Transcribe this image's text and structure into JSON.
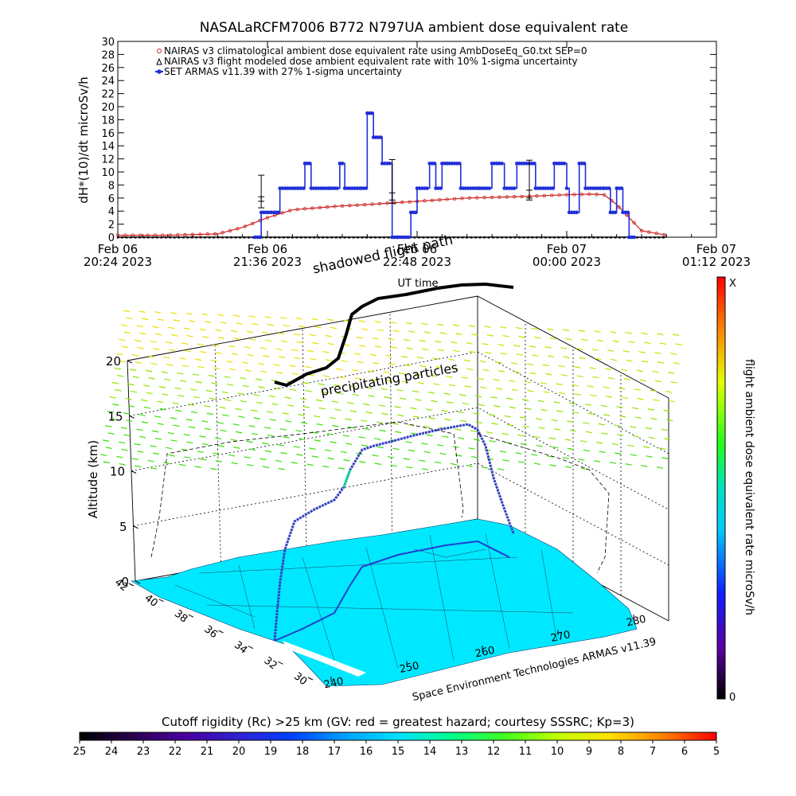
{
  "chart_data": [
    {
      "type": "line",
      "title": "NASALaRCFM7006   B772 N797UA ambient dose equivalent rate",
      "ylabel": "dH*(10)/dt microSv/h",
      "xlabel": "UT time",
      "ylim": [
        0,
        30
      ],
      "yticks": [
        "0",
        "2",
        "4",
        "6",
        "8",
        "10",
        "12",
        "14",
        "16",
        "18",
        "20",
        "22",
        "24",
        "26",
        "28",
        "30"
      ],
      "xlim_hours": [
        0,
        4.8
      ],
      "xticks": [
        {
          "line1": "Feb 06",
          "line2": "20:24 2023"
        },
        {
          "line1": "Feb 06",
          "line2": "21:36 2023"
        },
        {
          "line1": "Feb 06",
          "line2": "22:48 2023"
        },
        {
          "line1": "Feb 07",
          "line2": "00:00 2023"
        },
        {
          "line1": "Feb 07",
          "line2": "01:12 2023"
        }
      ],
      "legend_position": "top-left",
      "series": [
        {
          "name": "NAIRAS v3 climatological ambient dose equivalent rate using AmbDoseEq_G0.txt SEP=0",
          "color": "#cc2222",
          "x": [
            0.0,
            0.4,
            0.8,
            1.0,
            1.2,
            1.4,
            1.6,
            1.8,
            2.0,
            2.4,
            2.8,
            3.2,
            3.6,
            3.8,
            3.9,
            4.0,
            4.1,
            4.2,
            4.4
          ],
          "y": [
            0.3,
            0.3,
            0.5,
            1.5,
            3.0,
            4.2,
            4.5,
            4.8,
            5.0,
            5.5,
            6.0,
            6.2,
            6.5,
            6.6,
            6.5,
            5.0,
            3.0,
            1.0,
            0.3
          ]
        },
        {
          "name": "NAIRAS v3 flight modeled dose ambient equivalent rate with 10% 1-sigma uncertainty",
          "color": "#000000",
          "x": [
            0.0,
            4.4
          ],
          "y": [
            0.0,
            0.0
          ]
        },
        {
          "name": "SET ARMAS v11.39 with 27% 1-sigma uncertainty",
          "color": "#1f2fd8",
          "x": [
            1.1,
            1.15,
            1.3,
            1.45,
            1.5,
            1.55,
            1.7,
            1.78,
            1.82,
            1.95,
            2.0,
            2.05,
            2.12,
            2.2,
            2.25,
            2.35,
            2.4,
            2.5,
            2.55,
            2.6,
            2.75,
            2.9,
            3.0,
            3.1,
            3.2,
            3.35,
            3.5,
            3.6,
            3.62,
            3.7,
            3.75,
            3.9,
            3.95,
            4.0,
            4.05,
            4.1,
            4.15
          ],
          "y": [
            0.0,
            3.8,
            7.5,
            7.5,
            11.3,
            7.5,
            7.5,
            11.3,
            7.5,
            7.5,
            19.0,
            15.3,
            11.3,
            0.0,
            0.0,
            3.8,
            7.5,
            11.3,
            7.5,
            11.3,
            7.5,
            7.5,
            11.3,
            7.5,
            11.3,
            7.5,
            11.3,
            7.5,
            3.8,
            11.3,
            7.5,
            7.5,
            3.8,
            7.5,
            3.8,
            0.0,
            0.0
          ]
        }
      ],
      "error_bar_labels": []
    },
    {
      "type": "scatter",
      "subtitle": "Space Environment Technologies ARMAS v11.39",
      "zlabel": "Altitude (km)",
      "zticks": [
        "0",
        "5",
        "10",
        "15",
        "20"
      ],
      "lat_ticks": [
        "30",
        "32",
        "34",
        "36",
        "38",
        "40",
        "42"
      ],
      "lon_ticks": [
        "240",
        "250",
        "260",
        "270",
        "280"
      ],
      "annotations": [
        "shadowed flight path",
        "precipitating particles"
      ],
      "colorbar": {
        "label": "flight ambient dose equivalent rate microSv/h",
        "max_label": "X",
        "min_label": "0"
      },
      "track_points": [
        {
          "lon": 243,
          "lat": 33,
          "alt": 0.5
        },
        {
          "lon": 246,
          "lat": 35,
          "alt": 6
        },
        {
          "lon": 250,
          "lat": 37,
          "alt": 9
        },
        {
          "lon": 254,
          "lat": 39,
          "alt": 12
        },
        {
          "lon": 262,
          "lat": 40.5,
          "alt": 12.5
        },
        {
          "lon": 270,
          "lat": 41.5,
          "alt": 12.8
        },
        {
          "lon": 276,
          "lat": 41.8,
          "alt": 12.5
        },
        {
          "lon": 279,
          "lat": 41.5,
          "alt": 4
        }
      ]
    },
    {
      "type": "heatmap",
      "title": "Cutoff rigidity (Rc) >25 km (GV: red = greatest hazard; courtesy SSSRC; Kp=3)",
      "scale_labels": [
        "25",
        "24",
        "23",
        "22",
        "21",
        "20",
        "19",
        "18",
        "17",
        "16",
        "15",
        "14",
        "13",
        "12",
        "11",
        "10",
        "9",
        "8",
        "7",
        "6",
        "5"
      ],
      "colors": [
        "#000000",
        "#2a0050",
        "#4a00a0",
        "#3020d0",
        "#0040ff",
        "#00a0ff",
        "#00e0ff",
        "#00ff90",
        "#40ff20",
        "#c0ff00",
        "#ffe000",
        "#ff8000",
        "#ff0000"
      ]
    }
  ]
}
